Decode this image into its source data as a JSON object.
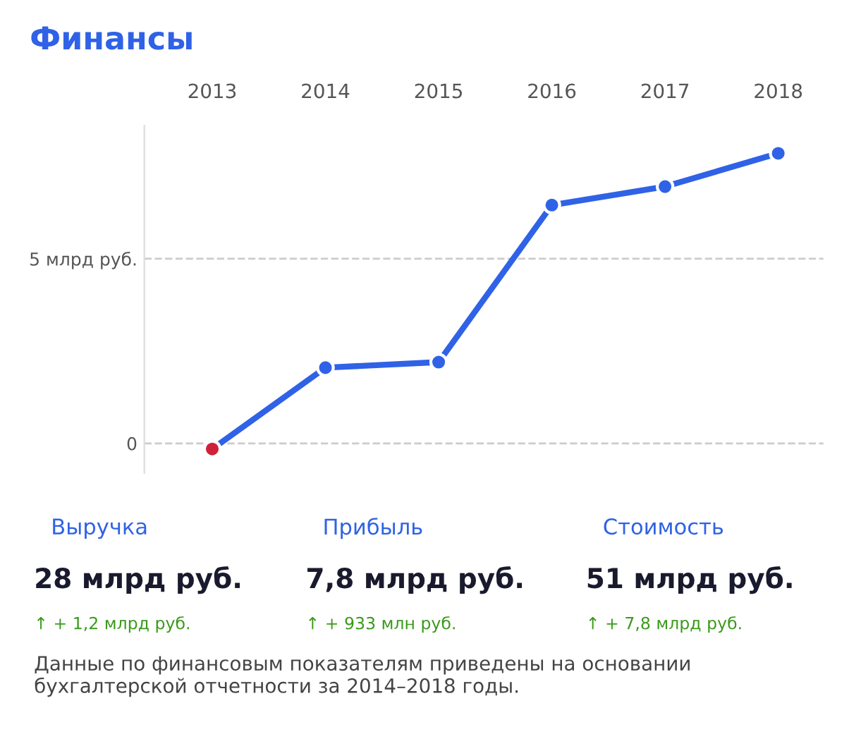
{
  "chart_data": {
    "type": "line",
    "title": "Финансы",
    "categories": [
      "2013",
      "2014",
      "2015",
      "2016",
      "2017",
      "2018"
    ],
    "series": [
      {
        "color": "#2f62e6",
        "colors": [
          "#d0213a",
          "#2f62e6",
          "#2f62e6",
          "#2f62e6",
          "#2f62e6",
          "#2f62e6"
        ],
        "values": [
          -0.15,
          2.05,
          2.2,
          6.45,
          6.95,
          7.85
        ]
      }
    ],
    "ylim": [
      -0.8,
      8.6
    ],
    "yticks": [
      {
        "value": 0,
        "label": "0"
      },
      {
        "value": 5,
        "label": "5 млрд руб."
      }
    ],
    "grid": "y",
    "marker": "circle",
    "line_style": "solid",
    "annotations": [
      "Выручка",
      "28 млрд руб.",
      "↑ + 1,2 млрд руб.",
      "Прибыль",
      "7,8 млрд руб.",
      "↑ + 933 млн руб.",
      "Стоимость",
      "51 млрд руб.",
      "↑ + 7,8 млрд руб.",
      "Данные по финансовым показателям приведены на основании бухгалтерской отчетности за 2014–2018 годы."
    ]
  }
}
